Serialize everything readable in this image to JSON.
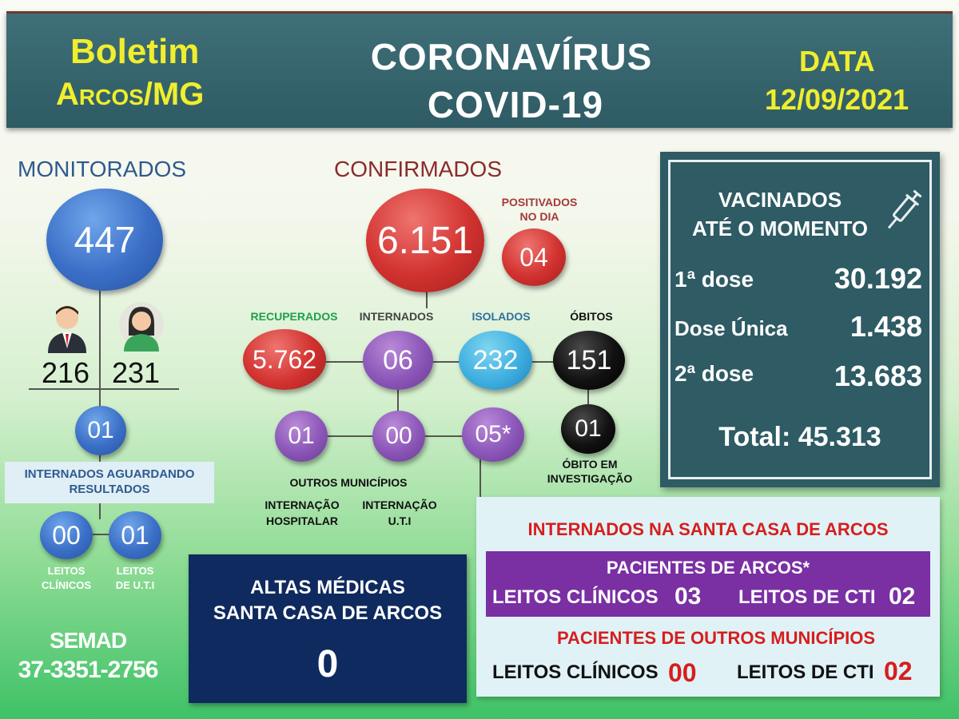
{
  "header": {
    "boletim_line1": "Boletim",
    "boletim_line2": "Arcos/MG",
    "title_line1": "CORONAVÍRUS",
    "title_line2": "COVID-19",
    "data_label": "DATA",
    "data_value": "12/09/2021"
  },
  "monitorados": {
    "label": "MONITORADOS",
    "total": "447",
    "male": "216",
    "female": "231",
    "internados_aguardando": "01",
    "internados_aguardando_label_1": "INTERNADOS AGUARDANDO",
    "internados_aguardando_label_2": "RESULTADOS",
    "leitos_clinicos": "00",
    "leitos_uti": "01",
    "leitos_clinicos_label_1": "LEITOS",
    "leitos_clinicos_label_2": "CLÍNICOS",
    "leitos_uti_label_1": "LEITOS",
    "leitos_uti_label_2": "DE  U.T.I"
  },
  "semad": {
    "label": "SEMAD",
    "phone": "37-3351-2756"
  },
  "confirmados": {
    "label": "CONFIRMADOS",
    "total": "6.151",
    "positivados_label_1": "POSITIVADOS",
    "positivados_label_2": "NO DIA",
    "positivados": "04",
    "recuperados_label": "RECUPERADOS",
    "recuperados": "5.762",
    "internados_label": "INTERNADOS",
    "internados": "06",
    "isolados_label": "ISOLADOS",
    "isolados": "232",
    "obitos_label": "ÓBITOS",
    "obitos": "151",
    "outros_municipios": "01",
    "internacao_uti": "00",
    "internacao_hospitalar": "05*",
    "obito_investigacao": "01",
    "obito_investigacao_label_1": "ÓBITO EM",
    "obito_investigacao_label_2": "INVESTIGAÇÃO",
    "outros_municipios_label": "OUTROS MUNICÍPIOS",
    "internacao_hospitalar_label_1": "INTERNAÇÃO",
    "internacao_hospitalar_label_2": "HOSPITALAR",
    "internacao_uti_label_1": "INTERNAÇÃO",
    "internacao_uti_label_2": "U.T.I"
  },
  "vacinados": {
    "title_1": "VACINADOS",
    "title_2": "ATÉ O MOMENTO",
    "dose1_label": "1ª dose",
    "dose1": "30.192",
    "unica_label": "Dose Única",
    "unica": "1.438",
    "dose2_label": "2ª dose",
    "dose2": "13.683",
    "total_label": "Total: 45.313",
    "icon": "syringe-icon"
  },
  "altas": {
    "label_1": "ALTAS MÉDICAS",
    "label_2": "SANTA CASA DE ARCOS",
    "value": "0"
  },
  "santa_casa": {
    "title": "INTERNADOS NA SANTA CASA DE ARCOS",
    "arcos_label": "PACIENTES DE ARCOS*",
    "arcos_clinicos_label": "LEITOS CLÍNICOS",
    "arcos_clinicos": "03",
    "arcos_cti_label": "LEITOS DE CTI",
    "arcos_cti": "02",
    "outros_label": "PACIENTES DE OUTROS MUNICÍPIOS",
    "outros_clinicos_label": "LEITOS CLÍNICOS",
    "outros_clinicos": "00",
    "outros_cti_label": "LEITOS DE CTI",
    "outros_cti": "02"
  },
  "colors": {
    "header_bg": "#2e5b64",
    "yellow": "#f0ee2d",
    "recuperados": "#1ea04a",
    "internados": "#444444",
    "isolados": "#2f6fa0",
    "red_text": "#d61e1e"
  }
}
